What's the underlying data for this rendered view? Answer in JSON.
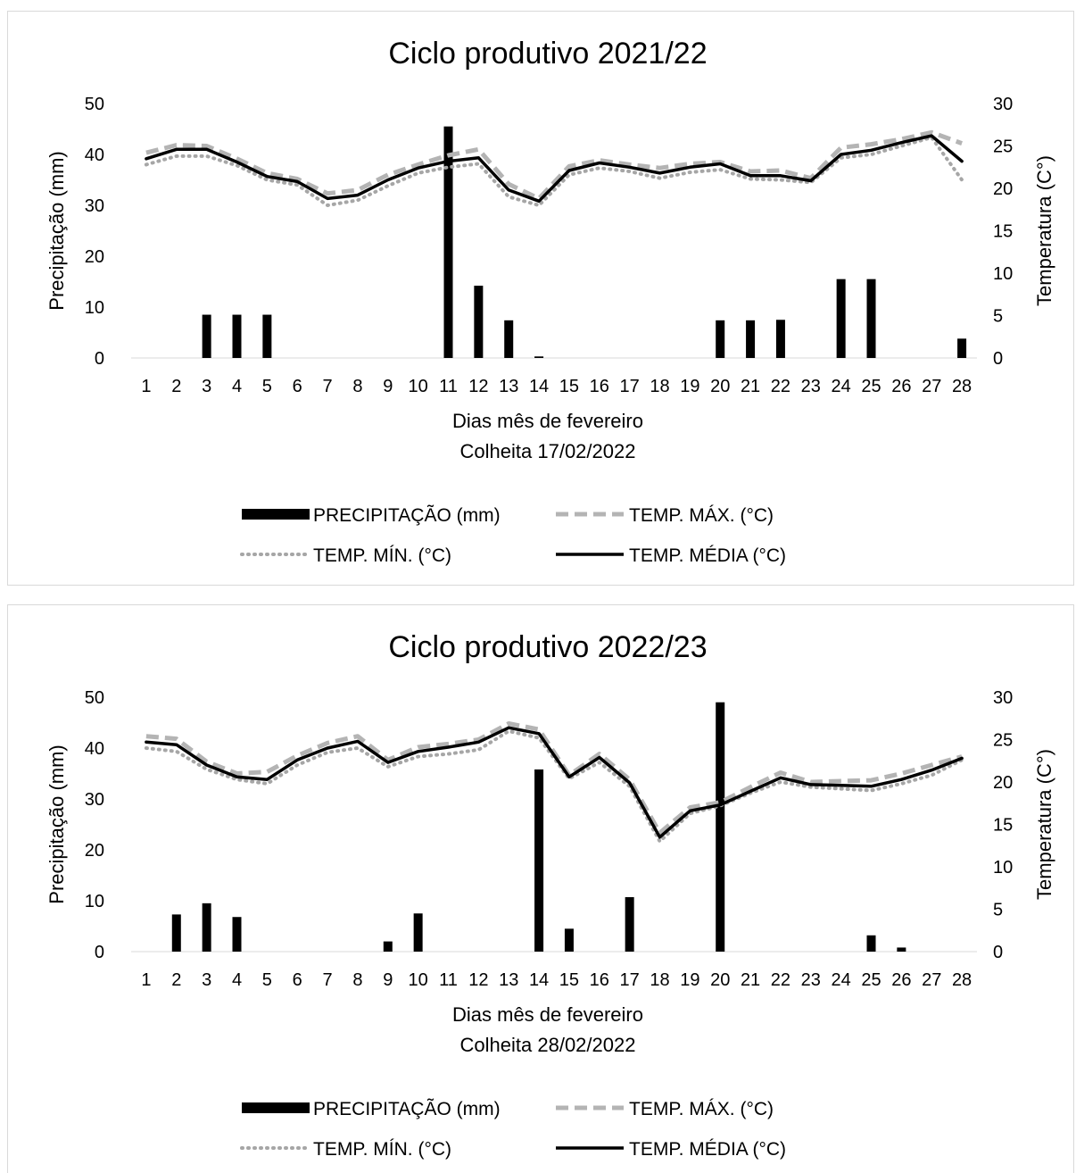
{
  "chart_data": [
    {
      "type": "bar",
      "title": "Ciclo produtivo 2021/22",
      "xlabel": "Dias mês de fevereiro",
      "xlabel2": "Colheita 17/02/2022",
      "ylabel_left": "Precipitação (mm)",
      "ylabel_right": "Temperatura (C°)",
      "ylim_left": [
        0,
        50
      ],
      "yticks_left": [
        "0",
        "10",
        "20",
        "30",
        "40",
        "50"
      ],
      "ylim_right": [
        0,
        30
      ],
      "yticks_right": [
        "0",
        "5",
        "10",
        "15",
        "20",
        "25",
        "30"
      ],
      "grid": false,
      "legend_position": "bottom",
      "categories": [
        "1",
        "2",
        "3",
        "4",
        "5",
        "6",
        "7",
        "8",
        "9",
        "10",
        "11",
        "12",
        "13",
        "14",
        "15",
        "16",
        "17",
        "18",
        "19",
        "20",
        "21",
        "22",
        "23",
        "24",
        "25",
        "26",
        "27",
        "28"
      ],
      "series": [
        {
          "name": "PRECIPITAÇÃO  (mm)",
          "type": "bar",
          "axis": "left",
          "color": "#000000",
          "values": [
            0,
            0,
            8.5,
            8.5,
            8.5,
            0,
            0,
            0,
            0,
            0,
            45.5,
            14.2,
            7.4,
            0.3,
            0,
            0,
            0,
            0,
            0,
            7.4,
            7.4,
            7.5,
            0,
            15.5,
            15.5,
            0,
            0,
            3.8
          ]
        },
        {
          "name": "TEMP. MÁX.  (°C)",
          "type": "line",
          "axis": "right",
          "style": "dashed",
          "color": "#b4b4b4",
          "values": [
            24.2,
            25.1,
            25.0,
            23.5,
            21.8,
            21.1,
            19.4,
            19.8,
            21.6,
            22.8,
            23.9,
            24.6,
            20.5,
            18.8,
            22.6,
            23.3,
            22.8,
            22.4,
            22.9,
            23.1,
            22.0,
            22.1,
            21.2,
            24.8,
            25.2,
            25.8,
            26.6,
            25.3
          ]
        },
        {
          "name": "TEMP. MÍN.  (°C)",
          "type": "line",
          "axis": "right",
          "style": "dotted",
          "color": "#a6a6a6",
          "values": [
            22.8,
            23.8,
            23.8,
            22.7,
            21.0,
            20.4,
            18.0,
            18.6,
            20.3,
            21.8,
            22.5,
            22.9,
            19.0,
            18.0,
            21.6,
            22.4,
            22.0,
            21.2,
            21.9,
            22.2,
            21.1,
            21.0,
            20.7,
            23.6,
            24.0,
            25.0,
            26.0,
            21.0
          ]
        },
        {
          "name": "TEMP. MÉDIA  (°C)",
          "type": "line",
          "axis": "right",
          "style": "solid",
          "color": "#000000",
          "values": [
            23.5,
            24.6,
            24.6,
            23.1,
            21.4,
            20.8,
            18.8,
            19.2,
            21.0,
            22.4,
            23.2,
            23.6,
            19.8,
            18.5,
            22.1,
            23.0,
            22.5,
            21.8,
            22.5,
            22.9,
            21.5,
            21.5,
            20.9,
            24.0,
            24.5,
            25.4,
            26.2,
            23.2
          ]
        }
      ]
    },
    {
      "type": "bar",
      "title": "Ciclo produtivo 2022/23",
      "xlabel": "Dias mês de fevereiro",
      "xlabel2": "Colheita 28/02/2022",
      "ylabel_left": "Precipitação (mm)",
      "ylabel_right": "Temperatura (C°)",
      "ylim_left": [
        0,
        50
      ],
      "yticks_left": [
        "0",
        "10",
        "20",
        "30",
        "40",
        "50"
      ],
      "ylim_right": [
        0,
        30
      ],
      "yticks_right": [
        "0",
        "5",
        "10",
        "15",
        "20",
        "25",
        "30"
      ],
      "grid": false,
      "legend_position": "bottom",
      "categories": [
        "1",
        "2",
        "3",
        "4",
        "5",
        "6",
        "7",
        "8",
        "9",
        "10",
        "11",
        "12",
        "13",
        "14",
        "15",
        "16",
        "17",
        "18",
        "19",
        "20",
        "21",
        "22",
        "23",
        "24",
        "25",
        "26",
        "27",
        "28"
      ],
      "series": [
        {
          "name": "PRECIPITAÇÃO  (mm)",
          "type": "bar",
          "axis": "left",
          "color": "#000000",
          "values": [
            0,
            7.3,
            9.5,
            6.8,
            0,
            0,
            0,
            0,
            2.0,
            7.5,
            0,
            0,
            0,
            35.8,
            4.5,
            0,
            10.7,
            0,
            0,
            49.0,
            0,
            0,
            0,
            0,
            3.2,
            0.8,
            0,
            0
          ]
        },
        {
          "name": "TEMP. MÁX.  (°C)",
          "type": "line",
          "axis": "right",
          "style": "dashed",
          "color": "#b4b4b4",
          "values": [
            25.4,
            25.1,
            22.4,
            21.0,
            21.2,
            23.1,
            24.6,
            25.4,
            22.6,
            24.1,
            24.5,
            25.0,
            26.9,
            26.2,
            20.8,
            23.3,
            20.3,
            14.0,
            17.0,
            17.6,
            19.4,
            21.1,
            20.0,
            20.1,
            20.2,
            21.0,
            22.0,
            23.0
          ]
        },
        {
          "name": "TEMP. MÍN.  (°C)",
          "type": "line",
          "axis": "right",
          "style": "dotted",
          "color": "#a6a6a6",
          "values": [
            24.0,
            23.6,
            21.5,
            20.3,
            19.8,
            22.0,
            23.5,
            24.0,
            21.8,
            23.0,
            23.3,
            23.8,
            26.0,
            25.2,
            20.4,
            22.3,
            19.5,
            13.0,
            16.3,
            17.2,
            18.7,
            20.0,
            19.4,
            19.2,
            19.0,
            19.8,
            20.8,
            22.6
          ]
        },
        {
          "name": "TEMP. MÉDIA  (°C)",
          "type": "line",
          "axis": "right",
          "style": "solid",
          "color": "#000000",
          "values": [
            24.7,
            24.4,
            22.0,
            20.6,
            20.3,
            22.6,
            24.0,
            24.8,
            22.3,
            23.6,
            24.1,
            24.7,
            26.4,
            25.7,
            20.6,
            22.9,
            19.9,
            13.5,
            16.6,
            17.3,
            18.9,
            20.5,
            19.7,
            19.6,
            19.5,
            20.3,
            21.4,
            22.8
          ]
        }
      ]
    }
  ]
}
